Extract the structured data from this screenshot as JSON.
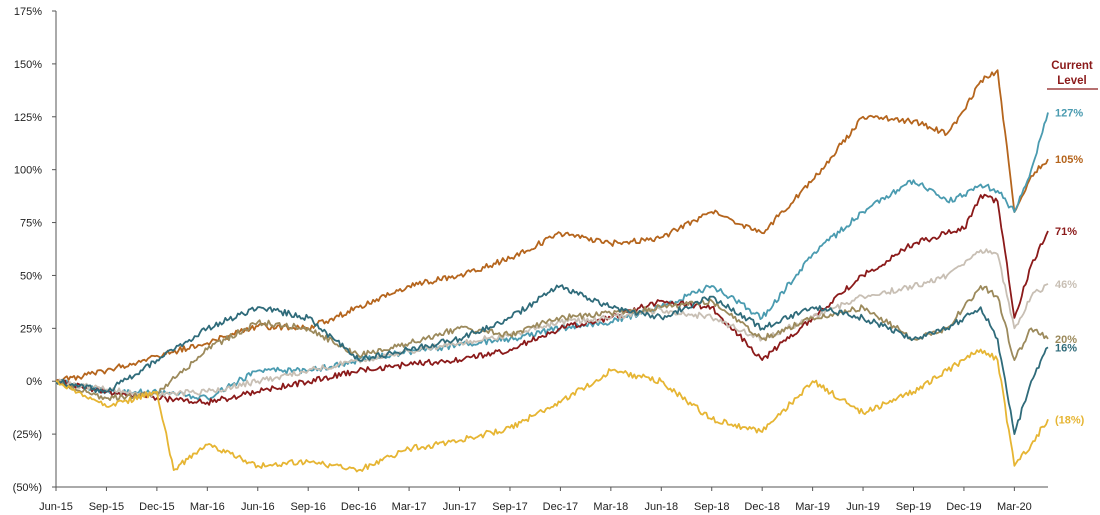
{
  "chart_data": {
    "type": "line",
    "title": "",
    "xlabel": "",
    "ylabel": "",
    "ylim": [
      -50,
      175
    ],
    "y_ticks": [
      -50,
      -25,
      0,
      25,
      50,
      75,
      100,
      125,
      150,
      175
    ],
    "y_tick_labels": [
      "(50%)",
      "(25%)",
      "0%",
      "25%",
      "50%",
      "75%",
      "100%",
      "125%",
      "150%",
      "175%"
    ],
    "x_ticks": [
      "Jun-15",
      "Sep-15",
      "Dec-15",
      "Mar-16",
      "Jun-16",
      "Sep-16",
      "Dec-16",
      "Mar-17",
      "Jun-17",
      "Sep-17",
      "Dec-17",
      "Mar-18",
      "Jun-18",
      "Sep-18",
      "Dec-18",
      "Mar-19",
      "Jun-19",
      "Sep-19",
      "Dec-19",
      "Mar-20"
    ],
    "x_range": [
      "Jun-15",
      "May-20"
    ],
    "legend_title": [
      "Current",
      "Level"
    ],
    "grid": false,
    "series": [
      {
        "color": "#b5651d",
        "end_label": "105%",
        "x": [
          "Jun-15",
          "Sep-15",
          "Dec-15",
          "Mar-16",
          "Jun-16",
          "Sep-16",
          "Dec-16",
          "Mar-17",
          "Jun-17",
          "Sep-17",
          "Dec-17",
          "Mar-18",
          "Jun-18",
          "Sep-18",
          "Dec-18",
          "Mar-19",
          "Jun-19",
          "Sep-19",
          "Nov-19",
          "Dec-19",
          "Jan-20",
          "Feb-20",
          "Mar-20",
          "Apr-20",
          "May-20"
        ],
        "values": [
          0,
          5,
          12,
          18,
          26,
          25,
          35,
          45,
          50,
          58,
          70,
          65,
          68,
          80,
          70,
          95,
          125,
          123,
          117,
          128,
          142,
          147,
          80,
          97,
          105
        ]
      },
      {
        "color": "#4a9bb0",
        "end_label": "127%",
        "x": [
          "Jun-15",
          "Sep-15",
          "Dec-15",
          "Mar-16",
          "Jun-16",
          "Sep-16",
          "Dec-16",
          "Mar-17",
          "Jun-17",
          "Sep-17",
          "Dec-17",
          "Mar-18",
          "Jun-18",
          "Sep-18",
          "Dec-18",
          "Mar-19",
          "Jun-19",
          "Sep-19",
          "Nov-19",
          "Dec-19",
          "Jan-20",
          "Feb-20",
          "Mar-20",
          "Apr-20",
          "May-20"
        ],
        "values": [
          0,
          -5,
          -5,
          -8,
          5,
          5,
          10,
          14,
          17,
          20,
          25,
          28,
          35,
          45,
          30,
          60,
          80,
          95,
          85,
          88,
          93,
          90,
          80,
          100,
          127
        ]
      },
      {
        "color": "#8b1a1a",
        "end_label": "71%",
        "x": [
          "Jun-15",
          "Sep-15",
          "Dec-15",
          "Mar-16",
          "Jun-16",
          "Sep-16",
          "Dec-16",
          "Mar-17",
          "Jun-17",
          "Sep-17",
          "Dec-17",
          "Mar-18",
          "Jun-18",
          "Sep-18",
          "Dec-18",
          "Mar-19",
          "Jun-19",
          "Sep-19",
          "Nov-19",
          "Dec-19",
          "Jan-20",
          "Feb-20",
          "Mar-20",
          "Apr-20",
          "May-20"
        ],
        "values": [
          0,
          -5,
          -8,
          -10,
          -5,
          0,
          5,
          8,
          10,
          15,
          25,
          30,
          38,
          35,
          10,
          30,
          50,
          65,
          70,
          72,
          88,
          85,
          30,
          55,
          71
        ]
      },
      {
        "color": "#c8bfb4",
        "end_label": "46%",
        "x": [
          "Jun-15",
          "Sep-15",
          "Dec-15",
          "Mar-16",
          "Jun-16",
          "Sep-16",
          "Dec-16",
          "Mar-17",
          "Jun-17",
          "Sep-17",
          "Dec-17",
          "Mar-18",
          "Jun-18",
          "Sep-18",
          "Dec-18",
          "Mar-19",
          "Jun-19",
          "Sep-19",
          "Nov-19",
          "Dec-19",
          "Jan-20",
          "Feb-20",
          "Mar-20",
          "Apr-20",
          "May-20"
        ],
        "values": [
          0,
          -4,
          -6,
          -5,
          0,
          5,
          10,
          14,
          18,
          22,
          28,
          30,
          34,
          30,
          20,
          30,
          40,
          45,
          50,
          55,
          62,
          60,
          25,
          40,
          46
        ]
      },
      {
        "color": "#9c8a5c",
        "end_label": "20%",
        "x": [
          "Jun-15",
          "Sep-15",
          "Dec-15",
          "Mar-16",
          "Jun-16",
          "Sep-16",
          "Dec-16",
          "Mar-17",
          "Jun-17",
          "Sep-17",
          "Dec-17",
          "Mar-18",
          "Jun-18",
          "Sep-18",
          "Dec-18",
          "Mar-19",
          "Jun-19",
          "Sep-19",
          "Nov-19",
          "Dec-19",
          "Jan-20",
          "Feb-20",
          "Mar-20",
          "Apr-20",
          "May-20"
        ],
        "values": [
          0,
          -8,
          -6,
          15,
          28,
          25,
          12,
          18,
          25,
          22,
          30,
          32,
          35,
          38,
          20,
          30,
          35,
          20,
          25,
          35,
          45,
          40,
          10,
          25,
          20
        ]
      },
      {
        "color": "#2f6b7a",
        "end_label": "16%",
        "x": [
          "Jun-15",
          "Sep-15",
          "Dec-15",
          "Mar-16",
          "Jun-16",
          "Sep-16",
          "Dec-16",
          "Mar-17",
          "Jun-17",
          "Sep-17",
          "Dec-17",
          "Mar-18",
          "Jun-18",
          "Sep-18",
          "Dec-18",
          "Mar-19",
          "Jun-19",
          "Sep-19",
          "Nov-19",
          "Dec-19",
          "Jan-20",
          "Feb-20",
          "Mar-20",
          "Apr-20",
          "May-20"
        ],
        "values": [
          0,
          -5,
          10,
          25,
          35,
          30,
          10,
          15,
          20,
          30,
          45,
          35,
          30,
          40,
          25,
          35,
          30,
          20,
          25,
          30,
          35,
          20,
          -25,
          0,
          16
        ]
      },
      {
        "color": "#e6b533",
        "end_label": "(18%)",
        "x": [
          "Jun-15",
          "Sep-15",
          "Dec-15",
          "Jan-16",
          "Mar-16",
          "Jun-16",
          "Sep-16",
          "Dec-16",
          "Mar-17",
          "Jun-17",
          "Sep-17",
          "Dec-17",
          "Mar-18",
          "Jun-18",
          "Sep-18",
          "Dec-18",
          "Mar-19",
          "Jun-19",
          "Sep-19",
          "Nov-19",
          "Dec-19",
          "Jan-20",
          "Feb-20",
          "Mar-20",
          "Apr-20",
          "May-20"
        ],
        "values": [
          0,
          -12,
          -5,
          -42,
          -30,
          -40,
          -38,
          -42,
          -32,
          -28,
          -22,
          -10,
          5,
          0,
          -18,
          -24,
          0,
          -15,
          -5,
          5,
          10,
          15,
          10,
          -40,
          -30,
          -18
        ]
      }
    ]
  }
}
